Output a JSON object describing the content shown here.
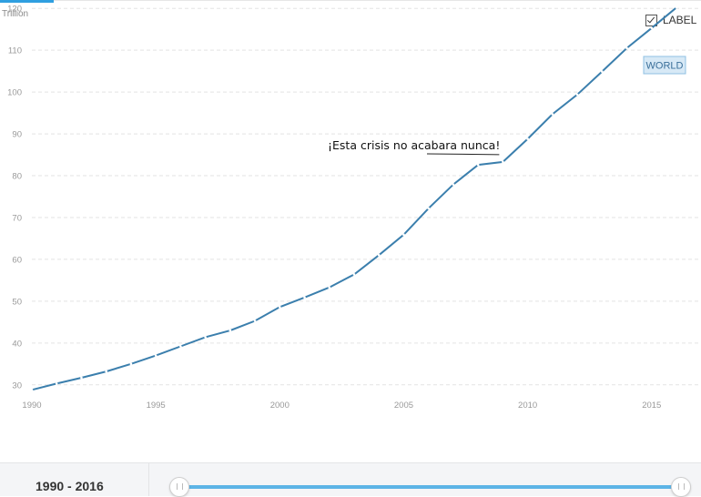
{
  "unit_label": "Trillion",
  "label_toggle": {
    "text": "LABEL",
    "checked": true
  },
  "footer": {
    "range_start": "1990",
    "range_separator": " - ",
    "range_end": "2016"
  },
  "colors": {
    "line": "#3b7fad",
    "grid": "#e3e3e3",
    "axis_text": "#999999",
    "accent": "#2f9fe0"
  },
  "chart_data": {
    "type": "line",
    "title": "",
    "xlabel": "",
    "ylabel": "Trillion",
    "xlim": [
      1990,
      2016
    ],
    "ylim": [
      28,
      122
    ],
    "x_ticks": [
      1990,
      1995,
      2000,
      2005,
      2010,
      2015
    ],
    "y_ticks": [
      30,
      40,
      50,
      60,
      70,
      80,
      90,
      100,
      110,
      120
    ],
    "grid": true,
    "series": [
      {
        "name": "WORLD",
        "x": [
          1990,
          1991,
          1992,
          1993,
          1994,
          1995,
          1996,
          1997,
          1998,
          1999,
          2000,
          2001,
          2002,
          2003,
          2004,
          2005,
          2006,
          2007,
          2008,
          2009,
          2010,
          2011,
          2012,
          2013,
          2014,
          2015,
          2016
        ],
        "values": [
          28.8,
          30.3,
          31.7,
          33.2,
          35.0,
          37.0,
          39.2,
          41.4,
          43.0,
          45.3,
          48.6,
          50.9,
          53.3,
          56.4,
          61.0,
          65.9,
          72.2,
          77.9,
          82.6,
          83.3,
          88.8,
          94.7,
          99.4,
          104.9,
          110.5,
          115.3,
          120.2
        ]
      }
    ],
    "end_label": "WORLD",
    "annotations": [
      {
        "text": "¡Esta crisis no acabara nunca!",
        "x": 2009,
        "y": 83.3
      }
    ]
  }
}
